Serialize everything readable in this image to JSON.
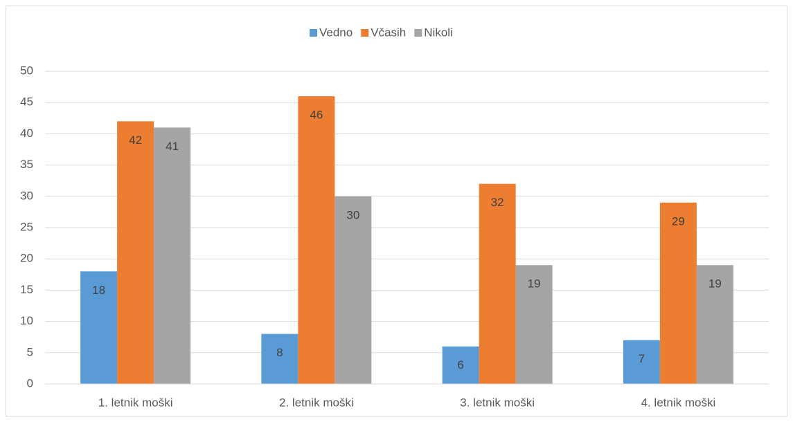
{
  "chart_data": {
    "type": "bar",
    "categories": [
      "1. letnik moški",
      "2. letnik moški",
      "3. letnik moški",
      "4. letnik moški"
    ],
    "series": [
      {
        "name": "Vedno",
        "color": "#5b9bd5",
        "values": [
          18,
          8,
          6,
          7
        ]
      },
      {
        "name": "Včasih",
        "color": "#ed7d31",
        "values": [
          42,
          46,
          32,
          29
        ]
      },
      {
        "name": "Nikoli",
        "color": "#a5a5a5",
        "values": [
          41,
          30,
          19,
          19
        ]
      }
    ],
    "ylim": [
      0,
      50
    ],
    "yticks": [
      0,
      5,
      10,
      15,
      20,
      25,
      30,
      35,
      40,
      45,
      50
    ],
    "grid": true,
    "legend": "top"
  }
}
